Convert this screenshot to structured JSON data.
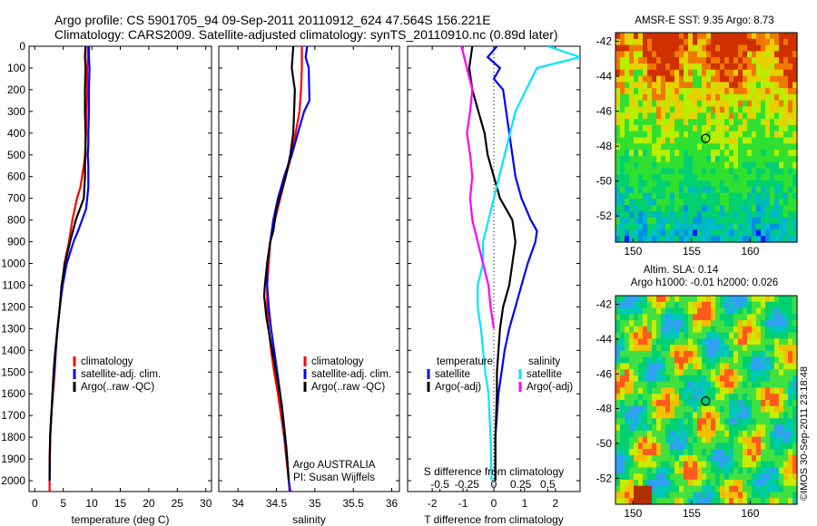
{
  "header": {
    "title_line1": "Argo profile: CS 5901705_94 09-Sep-2011 20110912_624 47.564S 156.221E",
    "title_line2": "Climatology: CARS2009. Satellite-adjusted climatology: synTS_20110910.nc (0.89d later)"
  },
  "stamp": "©IMOS 30-Sep-2011 23:18:48",
  "colors": {
    "climatology": "#ff0000",
    "satellite": "#0000ff",
    "argo": "#000000",
    "cyan": "#00e5ff",
    "magenta": "#ff00ff"
  },
  "chart_data": [
    {
      "type": "line",
      "id": "temperature",
      "xlabel": "temperature (deg C)",
      "ylabel": "",
      "xlim": [
        -1,
        31
      ],
      "ylim": [
        2050,
        0
      ],
      "xticks": [
        "0",
        "5",
        "10",
        "15",
        "20",
        "25",
        "30"
      ],
      "yticks": [
        "0",
        "100",
        "200",
        "300",
        "400",
        "500",
        "600",
        "700",
        "800",
        "900",
        "1000",
        "1100",
        "1200",
        "1300",
        "1400",
        "1500",
        "1600",
        "1700",
        "1800",
        "1900",
        "2000"
      ],
      "legend_position": "bottom-right",
      "series": [
        {
          "name": "climatology",
          "color": "#ff0000",
          "x": [
            9.3,
            9.3,
            9.2,
            9.2,
            9.1,
            9.0,
            8.9,
            8.8,
            8.6,
            8.3,
            8.0,
            7.4,
            6.6,
            6.0,
            5.2,
            4.8,
            4.4,
            4.0,
            3.7,
            3.5,
            3.2,
            2.9,
            2.7,
            2.6,
            2.6
          ],
          "y": [
            0,
            50,
            100,
            200,
            300,
            400,
            450,
            500,
            550,
            600,
            650,
            700,
            800,
            900,
            1000,
            1100,
            1200,
            1300,
            1400,
            1500,
            1600,
            1700,
            1800,
            1900,
            2050
          ]
        },
        {
          "name": "satellite-adj. clim.",
          "color": "#0000ff",
          "x": [
            9.5,
            9.5,
            9.6,
            9.5,
            9.5,
            9.4,
            9.4,
            9.3,
            9.4,
            9.4,
            9.4,
            9.0,
            7.6,
            6.8,
            5.6,
            4.9,
            4.4,
            4.0,
            3.7,
            3.4,
            3.1,
            2.9,
            2.7,
            2.6
          ],
          "y": [
            0,
            50,
            100,
            200,
            300,
            400,
            450,
            500,
            550,
            600,
            650,
            750,
            850,
            900,
            1000,
            1100,
            1200,
            1300,
            1400,
            1500,
            1600,
            1700,
            1800,
            2000
          ]
        },
        {
          "name": "Argo(..raw -QC)",
          "color": "#000000",
          "x": [
            8.9,
            8.8,
            8.9,
            8.8,
            8.8,
            8.9,
            8.9,
            8.9,
            8.8,
            8.8,
            8.6,
            7.2,
            6.2,
            5.3,
            4.7,
            4.4,
            4.0,
            3.6,
            3.3,
            3.1,
            2.9,
            2.7,
            2.6
          ],
          "y": [
            0,
            50,
            100,
            200,
            300,
            400,
            450,
            500,
            550,
            600,
            700,
            800,
            900,
            1000,
            1100,
            1200,
            1300,
            1400,
            1500,
            1600,
            1700,
            1800,
            2000
          ]
        }
      ]
    },
    {
      "type": "line",
      "id": "salinity",
      "xlabel": "salinity",
      "ylabel": "",
      "xlim": [
        33.75,
        36.1
      ],
      "ylim": [
        2050,
        0
      ],
      "xticks": [
        "34",
        "34.5",
        "35",
        "35.5",
        "36"
      ],
      "legend_position": "bottom-right",
      "annotation_line1": "Argo AUSTRALIA",
      "annotation_line2": "PI: Susan Wijffels",
      "series": [
        {
          "name": "climatology",
          "color": "#ff0000",
          "x": [
            34.83,
            34.83,
            34.82,
            34.8,
            34.75,
            34.7,
            34.62,
            34.55,
            34.48,
            34.42,
            34.4,
            34.38,
            34.38,
            34.4,
            34.43,
            34.47,
            34.52,
            34.56,
            34.6,
            34.63,
            34.66,
            34.67,
            34.7
          ],
          "y": [
            0,
            100,
            200,
            300,
            400,
            500,
            600,
            700,
            800,
            900,
            1000,
            1100,
            1200,
            1300,
            1400,
            1500,
            1600,
            1700,
            1800,
            1900,
            2000,
            2050,
            2050
          ]
        },
        {
          "name": "satellite-adj. clim.",
          "color": "#0000ff",
          "x": [
            34.9,
            34.88,
            34.92,
            34.93,
            34.86,
            34.78,
            34.7,
            34.6,
            34.52,
            34.46,
            34.42,
            34.38,
            34.38,
            34.4,
            34.43,
            34.47,
            34.51,
            34.55,
            34.58,
            34.61,
            34.64,
            34.66,
            34.68
          ],
          "y": [
            0,
            50,
            100,
            250,
            300,
            400,
            500,
            600,
            700,
            800,
            900,
            1000,
            1100,
            1200,
            1300,
            1400,
            1500,
            1600,
            1700,
            1800,
            1900,
            2000,
            2050
          ]
        },
        {
          "name": "Argo(..raw -QC)",
          "color": "#000000",
          "x": [
            34.72,
            34.7,
            34.74,
            34.73,
            34.72,
            34.68,
            34.62,
            34.58,
            34.5,
            34.46,
            34.42,
            34.38,
            34.35,
            34.34,
            34.37,
            34.42,
            34.47,
            34.52,
            34.57,
            34.6,
            34.63,
            34.66
          ],
          "y": [
            0,
            100,
            200,
            300,
            400,
            500,
            600,
            650,
            750,
            850,
            900,
            1000,
            1100,
            1150,
            1250,
            1350,
            1450,
            1550,
            1650,
            1750,
            1850,
            2000
          ]
        }
      ]
    },
    {
      "type": "line",
      "id": "difference",
      "xlabel": "T difference from climatology",
      "xlabel_top": "S difference from climatology",
      "xlim": [
        -2.8,
        2.8
      ],
      "xlim_salinity": [
        -0.8,
        0.8
      ],
      "ylim": [
        2050,
        0
      ],
      "xticks": [
        "-2",
        "-1",
        "0",
        "1",
        "2"
      ],
      "xticks_salinity": [
        "-0.5",
        "-0.25",
        "0",
        "0.25",
        "0.5"
      ],
      "legend_temperature_title": "temperature",
      "legend_salinity_title": "salinity",
      "legend_position": "bottom",
      "series": [
        {
          "name": "satellite",
          "group": "temperature",
          "color": "#0000ff",
          "x": [
            0.1,
            -0.2,
            0.2,
            0.0,
            0.3,
            0.4,
            0.5,
            0.6,
            0.7,
            0.9,
            1.2,
            1.4,
            1.35,
            1.1,
            0.9,
            0.7,
            0.5,
            0.35,
            0.25,
            0.15,
            0.1,
            0.05,
            0.05,
            0.05
          ],
          "y": [
            0,
            50,
            100,
            150,
            200,
            300,
            400,
            500,
            600,
            700,
            800,
            850,
            900,
            1000,
            1100,
            1200,
            1300,
            1400,
            1500,
            1600,
            1700,
            1800,
            1900,
            2000
          ]
        },
        {
          "name": "Argo(-adj)",
          "group": "temperature",
          "color": "#000000",
          "x": [
            -0.7,
            -0.8,
            -0.7,
            -0.5,
            -0.3,
            -0.2,
            0.0,
            0.2,
            0.4,
            0.6,
            0.7,
            0.6,
            0.5,
            0.3,
            0.2,
            0.15,
            0.1,
            0.1,
            0.05,
            0.05
          ],
          "y": [
            0,
            100,
            200,
            300,
            400,
            500,
            600,
            700,
            750,
            800,
            900,
            1000,
            1100,
            1200,
            1300,
            1400,
            1500,
            1600,
            1800,
            2000
          ]
        },
        {
          "name": "satellite",
          "group": "salinity",
          "color": "#00e5ff",
          "x": [
            0.5,
            0.8,
            0.4,
            0.3,
            0.2,
            0.15,
            0.1,
            0.05,
            0.0,
            -0.05,
            -0.1,
            -0.1,
            -0.15,
            -0.15,
            -0.12,
            -0.1,
            -0.08,
            -0.05,
            -0.03,
            -0.02
          ],
          "y": [
            0,
            50,
            100,
            200,
            300,
            400,
            500,
            600,
            700,
            800,
            900,
            1000,
            1100,
            1200,
            1300,
            1400,
            1500,
            1600,
            1800,
            2000
          ]
        },
        {
          "name": "Argo(-adj)",
          "group": "salinity",
          "color": "#ff00ff",
          "x": [
            -0.3,
            -0.25,
            -0.2,
            -0.22,
            -0.25,
            -0.22,
            -0.2,
            -0.22,
            -0.2,
            -0.15,
            -0.1,
            -0.05,
            -0.03,
            0.0
          ],
          "y": [
            0,
            100,
            200,
            300,
            400,
            500,
            600,
            700,
            800,
            900,
            1000,
            1100,
            1200,
            1300
          ]
        }
      ]
    },
    {
      "type": "heatmap",
      "id": "sst-map",
      "title": "AMSR-E SST: 9.35 Argo: 8.73",
      "xlim": [
        148.5,
        164
      ],
      "ylim": [
        -53.5,
        -41.5
      ],
      "xticks": [
        "150",
        "155",
        "160"
      ],
      "yticks": [
        "-42",
        "-44",
        "-46",
        "-48",
        "-50",
        "-52"
      ],
      "marker": {
        "lon": 156.2,
        "lat": -47.56
      }
    },
    {
      "type": "heatmap",
      "id": "sla-map",
      "title": "Altim. SLA: 0.14",
      "subtitle": "Argo h1000: -0.01 h2000: 0.026",
      "xlim": [
        148.5,
        164
      ],
      "ylim": [
        -53.5,
        -41.5
      ],
      "xticks": [
        "150",
        "155",
        "160"
      ],
      "yticks": [
        "-42",
        "-44",
        "-46",
        "-48",
        "-50",
        "-52"
      ],
      "marker": {
        "lon": 156.2,
        "lat": -47.56
      }
    }
  ]
}
